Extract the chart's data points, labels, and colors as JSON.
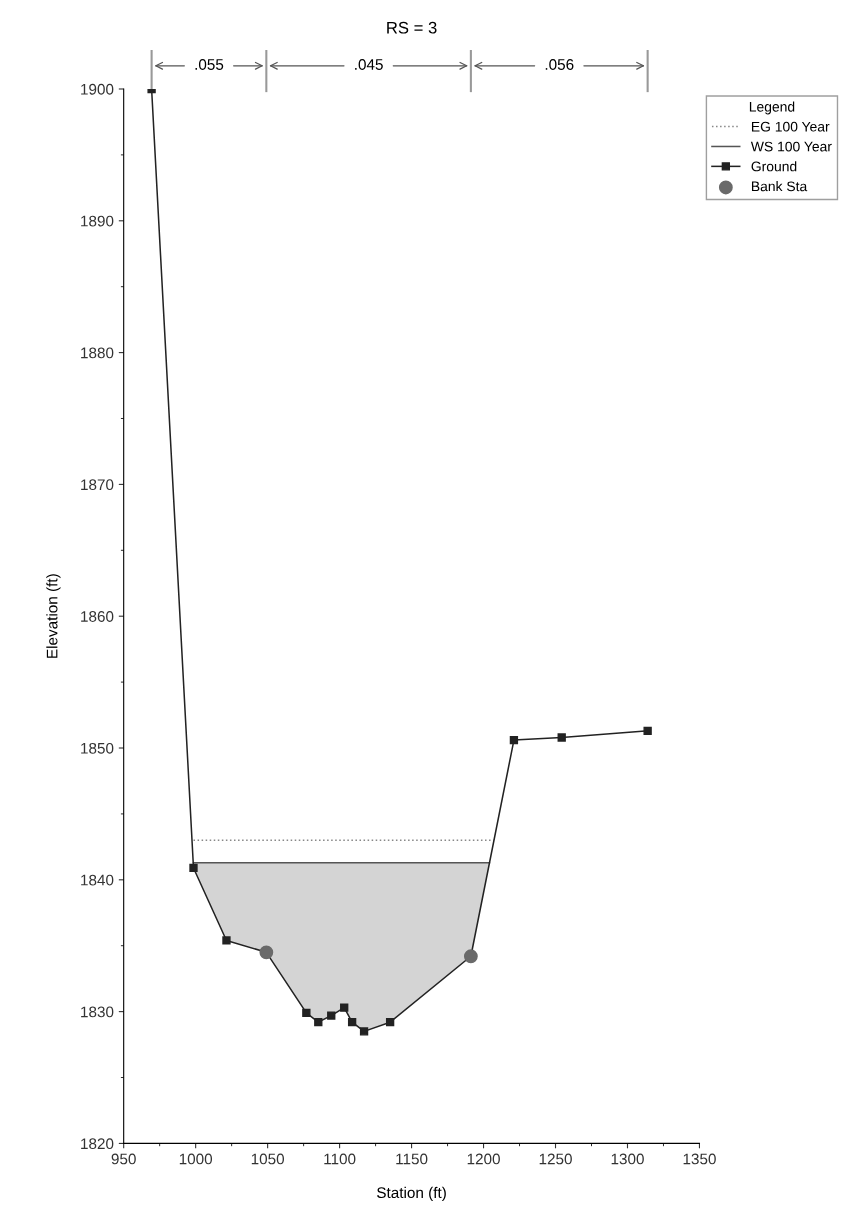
{
  "chart_data": {
    "type": "line",
    "title": "RS = 3",
    "xlabel": "Station (ft)",
    "ylabel": "Elevation (ft)",
    "legend_title": "Legend",
    "xlim": [
      950,
      1350
    ],
    "xticks": [
      950,
      1000,
      1050,
      1100,
      1150,
      1200,
      1250,
      1300,
      1350
    ],
    "ylim": [
      1820,
      1900
    ],
    "yticks": [
      1820,
      1830,
      1840,
      1850,
      1860,
      1870,
      1880,
      1890,
      1900
    ],
    "grid": false,
    "legend": "top right",
    "annotations": [
      ".055",
      ".045",
      ".056"
    ],
    "series": [
      {
        "name": "EG 100 Year",
        "type": "line",
        "line_style": "dotted",
        "marker": "none",
        "color": "#888888",
        "x": [
          998.5,
          1207
        ],
        "values": [
          1843.0,
          1843.0
        ]
      },
      {
        "name": "WS 100 Year",
        "line_style": "solid",
        "marker": "none",
        "color": "#555555",
        "x": [
          998.5,
          1021.4,
          1049.1,
          1076.9,
          1085.2,
          1094.2,
          1103.2,
          1108.7,
          1117.0,
          1135.1,
          1191.2,
          1204.1
        ],
        "values": [
          1841.3,
          1841.3,
          1841.3,
          1841.3,
          1841.3,
          1841.3,
          1841.3,
          1841.3,
          1841.3,
          1841.3,
          1841.3,
          1841.3
        ],
        "lower": [
          1840.9,
          1835.4,
          1834.5,
          1829.9,
          1829.2,
          1829.7,
          1830.3,
          1829.2,
          1828.5,
          1829.2,
          1834.2,
          1841.3
        ],
        "upper": [
          1841.3,
          1841.3,
          1841.3,
          1841.3,
          1841.3,
          1841.3,
          1841.3,
          1841.3,
          1841.3,
          1841.3,
          1841.3,
          1841.3
        ]
      },
      {
        "name": "Ground",
        "type": "line",
        "line_style": "solid",
        "marker": "square",
        "color": "#222222",
        "x": [
          969.4,
          998.5,
          1021.4,
          1049.1,
          1076.9,
          1085.2,
          1094.2,
          1103.2,
          1108.7,
          1117.0,
          1135.1,
          1191.2,
          1221.1,
          1254.3,
          1314.0
        ],
        "values": [
          1900.0,
          1840.9,
          1835.4,
          1834.5,
          1829.9,
          1829.2,
          1829.7,
          1830.3,
          1829.2,
          1828.5,
          1829.2,
          1834.2,
          1850.6,
          1850.8,
          1851.3
        ]
      },
      {
        "name": "Bank Sta",
        "type": "scatter",
        "marker": "circle",
        "color": "#6a6a6a",
        "x": [
          1049.1,
          1191.2
        ],
        "values": [
          1834.5,
          1834.2
        ]
      }
    ]
  }
}
